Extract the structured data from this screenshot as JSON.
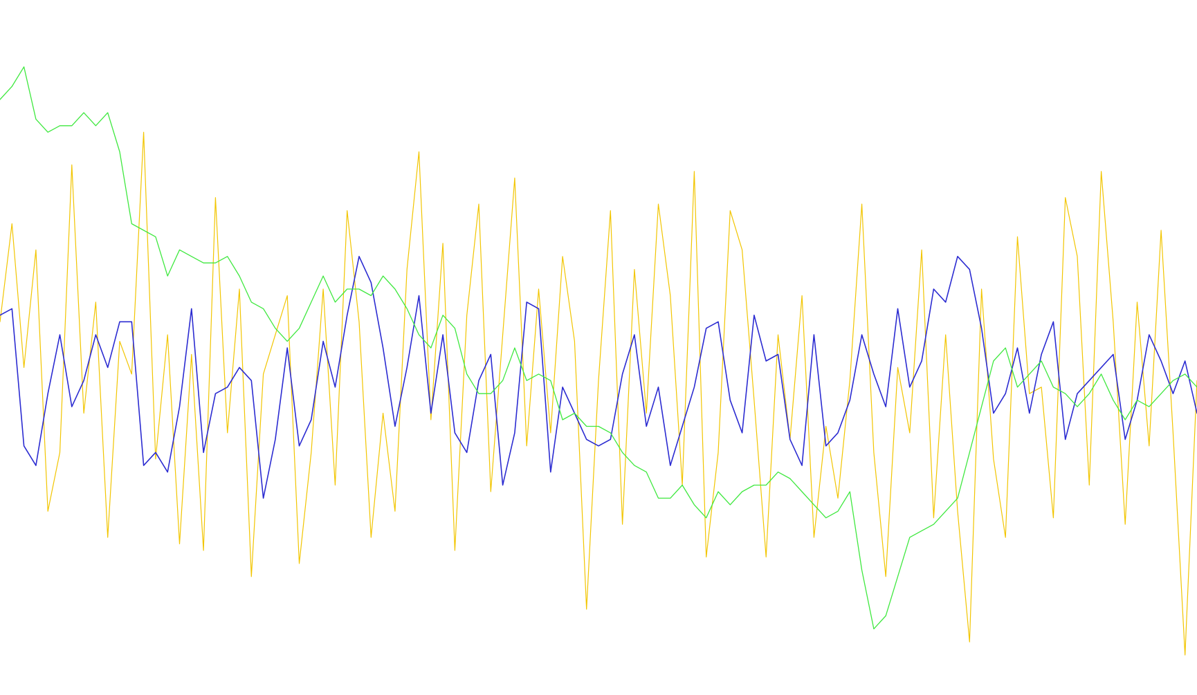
{
  "chart_data": {
    "type": "line",
    "title": "",
    "xlabel": "",
    "ylabel": "",
    "grid": false,
    "legend": "none",
    "xlim": [
      0,
      100
    ],
    "ylim": [
      0,
      100
    ],
    "series": [
      {
        "color": "#f2c500",
        "x": [
          0,
          1,
          2,
          3,
          4,
          5,
          6,
          7,
          8,
          9,
          10,
          11,
          12,
          13,
          14,
          15,
          16,
          17,
          18,
          19,
          20,
          21,
          22,
          23,
          24,
          25,
          26,
          27,
          28,
          29,
          30,
          31,
          32,
          33,
          34,
          35,
          36,
          37,
          38,
          39,
          40,
          41,
          42,
          43,
          44,
          45,
          46,
          47,
          48,
          49,
          50,
          51,
          52,
          53,
          54,
          55,
          56,
          57,
          58,
          59,
          60,
          61,
          62,
          63,
          64,
          65,
          66,
          67,
          68,
          69,
          70,
          71,
          72,
          73,
          74,
          75,
          76,
          77,
          78,
          79,
          80,
          81,
          82,
          83,
          84,
          85,
          86,
          87,
          88,
          89,
          90,
          91,
          92,
          93,
          94,
          95,
          96,
          97,
          98,
          99,
          100
        ],
        "y": [
          55,
          70,
          48,
          66,
          26,
          35,
          79,
          41,
          58,
          22,
          52,
          47,
          84,
          34,
          53,
          21,
          50,
          20,
          74,
          38,
          60,
          16,
          47,
          53,
          59,
          18,
          35,
          60,
          30,
          72,
          55,
          22,
          41,
          26,
          63,
          81,
          40,
          67,
          20,
          56,
          73,
          29,
          53,
          77,
          36,
          60,
          38,
          65,
          52,
          11,
          46,
          72,
          24,
          63,
          41,
          73,
          59,
          30,
          78,
          19,
          35,
          72,
          66,
          43,
          19,
          53,
          37,
          59,
          22,
          39,
          28,
          46,
          73,
          35,
          16,
          48,
          38,
          66,
          25,
          53,
          26,
          6,
          60,
          34,
          22,
          68,
          44,
          45,
          25,
          74,
          65,
          30,
          78,
          55,
          24,
          58,
          36,
          69,
          38,
          4,
          46
        ]
      },
      {
        "color": "#2b2bd1",
        "x": [
          0,
          1,
          2,
          3,
          4,
          5,
          6,
          7,
          8,
          9,
          10,
          11,
          12,
          13,
          14,
          15,
          16,
          17,
          18,
          19,
          20,
          21,
          22,
          23,
          24,
          25,
          26,
          27,
          28,
          29,
          30,
          31,
          32,
          33,
          34,
          35,
          36,
          37,
          38,
          39,
          40,
          41,
          42,
          43,
          44,
          45,
          46,
          47,
          48,
          49,
          50,
          51,
          52,
          53,
          54,
          55,
          56,
          57,
          58,
          59,
          60,
          61,
          62,
          63,
          64,
          65,
          66,
          67,
          68,
          69,
          70,
          71,
          72,
          73,
          74,
          75,
          76,
          77,
          78,
          79,
          80,
          81,
          82,
          83,
          84,
          85,
          86,
          87,
          88,
          89,
          90,
          91,
          92,
          93,
          94,
          95,
          96,
          97,
          98,
          99,
          100
        ],
        "y": [
          56,
          57,
          36,
          33,
          44,
          53,
          42,
          46,
          53,
          48,
          55,
          55,
          33,
          35,
          32,
          42,
          57,
          35,
          44,
          45,
          48,
          46,
          28,
          37,
          51,
          36,
          40,
          52,
          45,
          56,
          65,
          61,
          51,
          39,
          48,
          59,
          41,
          53,
          38,
          35,
          46,
          50,
          30,
          38,
          58,
          57,
          32,
          45,
          41,
          37,
          36,
          37,
          47,
          53,
          39,
          45,
          33,
          39,
          45,
          54,
          55,
          43,
          38,
          56,
          49,
          50,
          37,
          33,
          53,
          36,
          38,
          43,
          53,
          47,
          42,
          57,
          45,
          49,
          60,
          58,
          65,
          63,
          54,
          41,
          44,
          51,
          41,
          50,
          55,
          37,
          44,
          46,
          48,
          50,
          37,
          43,
          53,
          49,
          44,
          49,
          41
        ]
      },
      {
        "color": "#3fe83f",
        "x": [
          0,
          1,
          2,
          3,
          4,
          5,
          6,
          7,
          8,
          9,
          10,
          11,
          12,
          13,
          14,
          15,
          16,
          17,
          18,
          19,
          20,
          21,
          22,
          23,
          24,
          25,
          26,
          27,
          28,
          29,
          30,
          31,
          32,
          33,
          34,
          35,
          36,
          37,
          38,
          39,
          40,
          41,
          42,
          43,
          44,
          45,
          46,
          47,
          48,
          49,
          50,
          51,
          52,
          53,
          54,
          55,
          56,
          57,
          58,
          59,
          60,
          61,
          62,
          63,
          64,
          65,
          66,
          67,
          68,
          69,
          70,
          71,
          72,
          73,
          74,
          75,
          76,
          77,
          78,
          79,
          80,
          81,
          82,
          83,
          84,
          85,
          86,
          87,
          88,
          89,
          90,
          91,
          92,
          93,
          94,
          95,
          96,
          97,
          98,
          99,
          100
        ],
        "y": [
          89,
          91,
          94,
          86,
          84,
          85,
          85,
          87,
          85,
          87,
          81,
          70,
          69,
          68,
          62,
          66,
          65,
          64,
          64,
          65,
          62,
          58,
          57,
          54,
          52,
          54,
          58,
          62,
          58,
          60,
          60,
          59,
          62,
          60,
          57,
          53,
          51,
          56,
          54,
          47,
          44,
          44,
          46,
          51,
          46,
          47,
          46,
          40,
          41,
          39,
          39,
          38,
          35,
          33,
          32,
          28,
          28,
          30,
          27,
          25,
          29,
          27,
          29,
          30,
          30,
          32,
          31,
          29,
          27,
          25,
          26,
          29,
          17,
          8,
          10,
          16,
          22,
          23,
          24,
          26,
          28,
          35,
          42,
          49,
          51,
          45,
          47,
          49,
          45,
          44,
          42,
          44,
          47,
          43,
          40,
          43,
          42,
          44,
          46,
          47,
          45
        ]
      }
    ]
  }
}
